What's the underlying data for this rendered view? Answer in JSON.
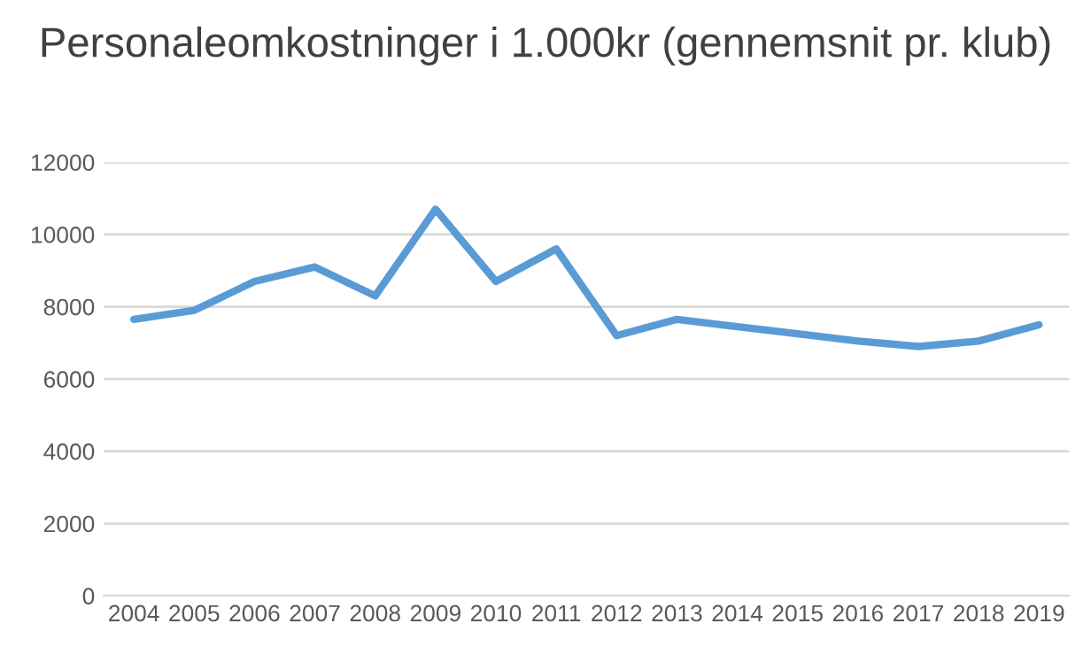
{
  "chart_data": {
    "type": "line",
    "title": "Personaleomkostninger i 1.000kr (gennemsnit pr. klub)",
    "categories": [
      "2004",
      "2005",
      "2006",
      "2007",
      "2008",
      "2009",
      "2010",
      "2011",
      "2012",
      "2013",
      "2014",
      "2015",
      "2016",
      "2017",
      "2018",
      "2019"
    ],
    "series": [
      {
        "color": "#5b9bd5",
        "values": [
          7650,
          7900,
          8700,
          9100,
          8300,
          10700,
          8700,
          9600,
          7200,
          7650,
          7450,
          7250,
          7050,
          6900,
          7050,
          7500
        ]
      }
    ],
    "ylim": [
      0,
      12000
    ],
    "yticks": [
      0,
      2000,
      4000,
      6000,
      8000,
      10000,
      12000
    ],
    "grid": "y",
    "legend": false,
    "marker": "none",
    "line_style": "solid"
  }
}
